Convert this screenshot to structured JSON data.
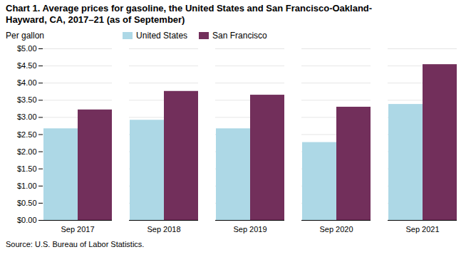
{
  "chart_data": {
    "type": "bar",
    "title": "Chart 1. Average prices for gasoline, the United States and San Francisco-Oakland-\nHayward, CA, 2017–21 (as of September)",
    "ylabel": "Per gallon",
    "source": "Source: U.S. Bureau of Labor Statistics.",
    "categories": [
      "Sep 2017",
      "Sep 2018",
      "Sep 2019",
      "Sep 2020",
      "Sep 2021"
    ],
    "series": [
      {
        "name": "United States",
        "color": "#add8e6",
        "values": [
          2.67,
          2.92,
          2.67,
          2.27,
          3.38
        ]
      },
      {
        "name": "San Francisco",
        "color": "#722f5b",
        "values": [
          3.22,
          3.76,
          3.65,
          3.3,
          4.54
        ]
      }
    ],
    "ylim": [
      0,
      5.0
    ],
    "yticks": [
      {
        "value": 0.0,
        "label": "$0.00"
      },
      {
        "value": 0.5,
        "label": "$0.50"
      },
      {
        "value": 1.0,
        "label": "$1.00"
      },
      {
        "value": 1.5,
        "label": "$1.50"
      },
      {
        "value": 2.0,
        "label": "$2.00"
      },
      {
        "value": 2.5,
        "label": "$2.50"
      },
      {
        "value": 3.0,
        "label": "$3.00"
      },
      {
        "value": 3.5,
        "label": "$3.50"
      },
      {
        "value": 4.0,
        "label": "$4.00"
      },
      {
        "value": 4.5,
        "label": "$4.50"
      },
      {
        "value": 5.0,
        "label": "$5.00"
      }
    ],
    "grid": true,
    "legend": "top"
  }
}
